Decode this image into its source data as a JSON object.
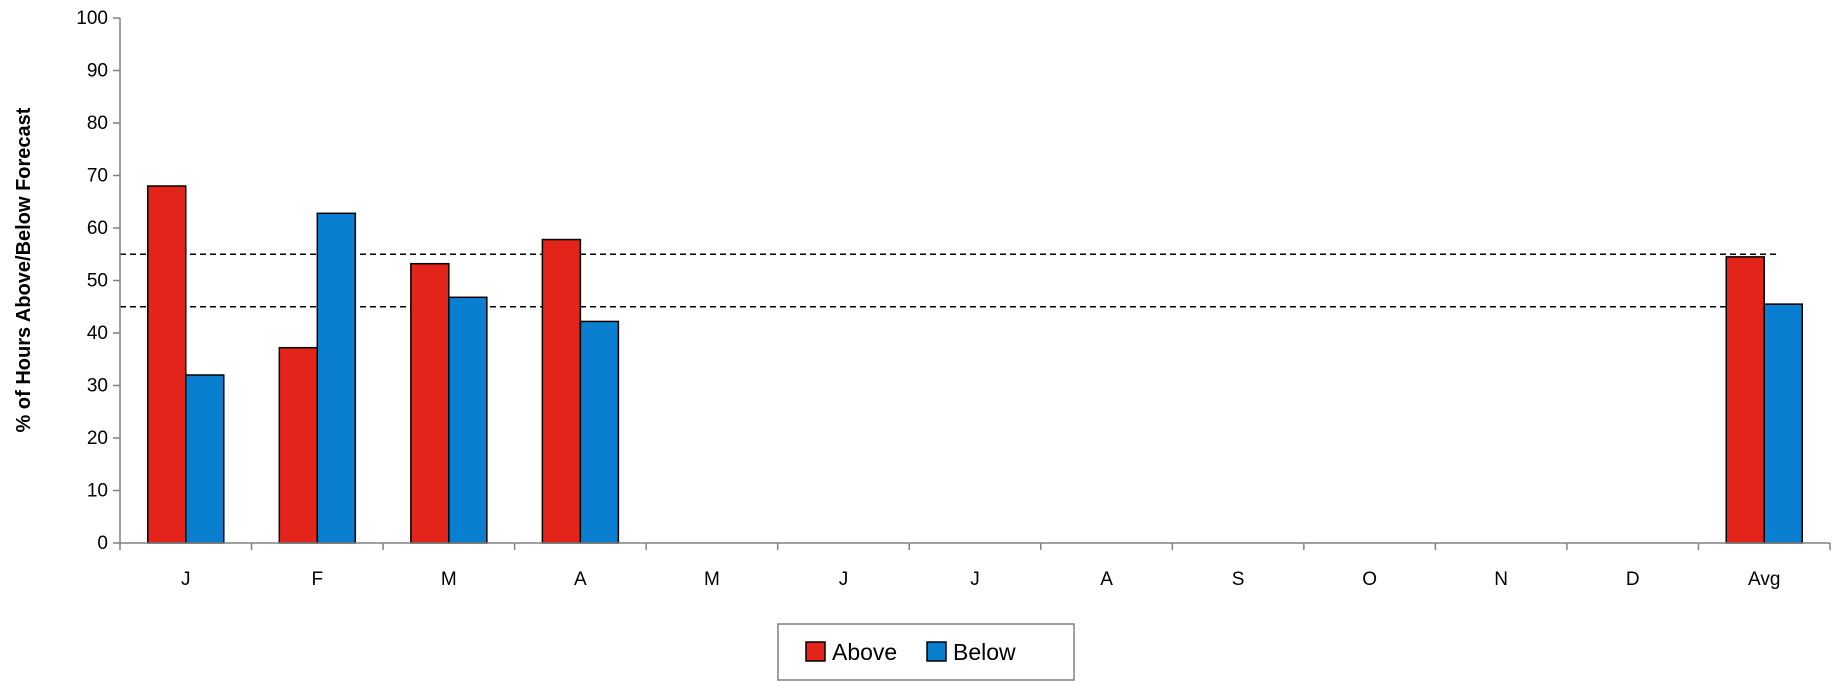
{
  "chart_data": {
    "type": "bar",
    "title": "",
    "xlabel": "",
    "ylabel": "% of Hours Above/Below Forecast",
    "categories": [
      "J",
      "F",
      "M",
      "A",
      "M",
      "J",
      "J",
      "A",
      "S",
      "O",
      "N",
      "D",
      "Avg"
    ],
    "series": [
      {
        "name": "Above",
        "color": "#e3241b",
        "values": [
          68,
          37.2,
          53.2,
          57.8,
          null,
          null,
          null,
          null,
          null,
          null,
          null,
          null,
          54.5
        ]
      },
      {
        "name": "Below",
        "color": "#0a7fd0",
        "values": [
          32,
          62.8,
          46.8,
          42.2,
          null,
          null,
          null,
          null,
          null,
          null,
          null,
          null,
          45.5
        ]
      }
    ],
    "ylim": [
      0,
      100
    ],
    "yticks": [
      0,
      10,
      20,
      30,
      40,
      50,
      60,
      70,
      80,
      90,
      100
    ],
    "reference_lines": [
      55,
      45
    ],
    "grid": false,
    "legend_position": "bottom-center"
  }
}
